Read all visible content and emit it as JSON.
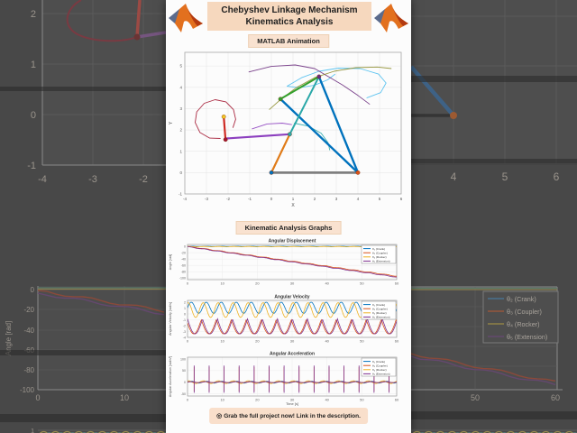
{
  "header": {
    "title_line1": "Chebyshev Linkage Mechanism",
    "title_line2": "Kinematics Analysis",
    "animation_badge": "MATLAB Animation"
  },
  "graphs_section": {
    "badge": "Kinematic Analysis Graphs"
  },
  "footer": {
    "icon": "◎",
    "cta": "Grab the full project now! Link in the description."
  },
  "colors": {
    "peach": "#F6D8BE",
    "peach_light": "#F9E2D0",
    "panel": "#FCFCFC",
    "bg_dim": "#484848",
    "matlab_blue": "#0072BD",
    "matlab_orange": "#D95319",
    "matlab_yellow": "#EDB120",
    "matlab_purple": "#7E2F8E",
    "matlab_green": "#33A02C",
    "matlab_cyan": "#4DBEEE",
    "matlab_darkred": "#A2142F"
  },
  "legend": {
    "entries": [
      {
        "label": "θ₂ (Crank)",
        "color": "#0072BD"
      },
      {
        "label": "θ₃ (Coupler)",
        "color": "#D95319"
      },
      {
        "label": "θ₄ (Rocker)",
        "color": "#EDB120"
      },
      {
        "label": "θ₅ (Extension)",
        "color": "#7E2F8E"
      }
    ]
  },
  "chart_data": [
    {
      "id": "mechanism",
      "type": "scatter",
      "title": "",
      "xlabel": "X",
      "ylabel": "Y",
      "xlim": [
        -4,
        6
      ],
      "ylim": [
        -1,
        5.64
      ],
      "xticks": [
        -4,
        -3,
        -2,
        -1,
        0,
        1,
        2,
        3,
        4,
        5,
        6
      ],
      "yticks": [
        -1,
        0,
        1,
        2,
        3,
        4,
        5
      ],
      "grid": true,
      "links": [
        {
          "name": "ground",
          "from": [
            0,
            0
          ],
          "to": [
            4,
            0
          ],
          "color": "#7F7F7F",
          "width": 2.8
        },
        {
          "name": "rocker",
          "from": [
            4,
            0
          ],
          "to": [
            2.2,
            4.5
          ],
          "color": "#0072BD",
          "width": 2.4
        },
        {
          "name": "brace",
          "from": [
            0.42,
            3.45
          ],
          "to": [
            4,
            0
          ],
          "color": "#0072BD",
          "width": 2.4
        },
        {
          "name": "coupler",
          "from": [
            0.85,
            1.8
          ],
          "to": [
            2.2,
            4.5
          ],
          "color": "#2BA8A8",
          "width": 2.0
        },
        {
          "name": "upper-link",
          "from": [
            0.42,
            3.45
          ],
          "to": [
            2.2,
            4.5
          ],
          "color": "#33A02C",
          "width": 2.0
        },
        {
          "name": "crank",
          "from": [
            0,
            0
          ],
          "to": [
            0.85,
            1.8
          ],
          "color": "#E07B18",
          "width": 2.2
        },
        {
          "name": "extension-arm",
          "from": [
            0.85,
            1.8
          ],
          "to": [
            -2.1,
            1.6
          ],
          "color": "#8C3FBF",
          "width": 2.2
        },
        {
          "name": "pen-link",
          "from": [
            -2.12,
            1.55
          ],
          "to": [
            -2.2,
            2.62
          ],
          "color": "#CE2A23",
          "width": 2.2
        }
      ],
      "joints": [
        {
          "pos": [
            0,
            0
          ],
          "color": "#0072BD"
        },
        {
          "pos": [
            4,
            0
          ],
          "color": "#D95319"
        },
        {
          "pos": [
            0.85,
            1.8
          ],
          "color": "#2BA8A8"
        },
        {
          "pos": [
            2.2,
            4.5
          ],
          "color": "#6B2D7E"
        },
        {
          "pos": [
            0.42,
            3.45
          ],
          "color": "#33A02C"
        },
        {
          "pos": [
            -2.12,
            1.55
          ],
          "color": "#A2142F"
        },
        {
          "pos": [
            -2.2,
            2.62
          ],
          "color": "#F3C623"
        }
      ],
      "trajectories": [
        {
          "name": "pen-path",
          "color": "#A2142F",
          "points": [
            [
              -2.35,
              1.6
            ],
            [
              -2.85,
              1.62
            ],
            [
              -3.3,
              1.88
            ],
            [
              -3.52,
              2.35
            ],
            [
              -3.45,
              2.85
            ],
            [
              -3.1,
              3.25
            ],
            [
              -2.6,
              3.42
            ],
            [
              -2.1,
              3.32
            ],
            [
              -1.75,
              2.95
            ],
            [
              -1.65,
              2.5
            ],
            [
              -1.78,
              2.1
            ]
          ]
        },
        {
          "name": "coupler-path-outer",
          "color": "#4DBEEE",
          "points": [
            [
              0.72,
              4.05
            ],
            [
              1.4,
              4.45
            ],
            [
              2.2,
              4.75
            ],
            [
              3.1,
              4.9
            ],
            [
              4.1,
              4.88
            ],
            [
              4.95,
              4.62
            ],
            [
              5.3,
              4.2
            ],
            [
              5.05,
              3.75
            ],
            [
              4.4,
              3.5
            ]
          ]
        },
        {
          "name": "coupler-path-inner",
          "color": "#4DBEEE",
          "points": [
            [
              0.72,
              4.05
            ],
            [
              1.3,
              3.98
            ],
            [
              2.0,
              4.1
            ],
            [
              2.6,
              4.35
            ],
            [
              2.95,
              4.62
            ]
          ]
        },
        {
          "name": "top-joint-path",
          "color": "#6B2D7E",
          "points": [
            [
              -1.05,
              4.72
            ],
            [
              0.0,
              4.98
            ],
            [
              1.1,
              5.05
            ],
            [
              2.0,
              4.88
            ],
            [
              2.55,
              4.55
            ],
            [
              3.3,
              4.1
            ],
            [
              4.0,
              3.62
            ],
            [
              4.55,
              3.2
            ]
          ]
        },
        {
          "name": "upper-joint-path",
          "color": "#8B8B2A",
          "points": [
            [
              -0.1,
              2.95
            ],
            [
              0.45,
              3.45
            ],
            [
              1.15,
              3.98
            ],
            [
              2.0,
              4.45
            ],
            [
              2.9,
              4.75
            ],
            [
              3.9,
              4.92
            ],
            [
              4.9,
              4.95
            ],
            [
              5.55,
              4.88
            ]
          ]
        },
        {
          "name": "arm-tip-path",
          "color": "#2BA8A8",
          "points": [
            [
              1.05,
              2.32
            ],
            [
              1.7,
              2.18
            ],
            [
              2.3,
              1.85
            ],
            [
              2.62,
              1.4
            ],
            [
              2.7,
              1.05
            ]
          ]
        },
        {
          "name": "arm-tip-path-2",
          "color": "#8C3FBF",
          "points": [
            [
              -0.9,
              2.05
            ],
            [
              -0.2,
              2.28
            ],
            [
              0.5,
              2.32
            ],
            [
              0.95,
              2.25
            ]
          ]
        }
      ]
    },
    {
      "id": "angular-displacement",
      "type": "line",
      "title": "Angular Displacement",
      "ylabel": "Angle [rad]",
      "xlim": [
        0,
        60
      ],
      "ylim": [
        -105,
        6
      ],
      "yticks": [
        0,
        -20,
        -40,
        -60,
        -80,
        -100
      ],
      "xticks": [
        0,
        10,
        20,
        30,
        40,
        50,
        60
      ],
      "legend": true,
      "series": [
        {
          "name": "θ₂ (Crank)",
          "color": "#0072BD",
          "kind": "sin",
          "base": 0.3,
          "amp": 0.4,
          "period": 4.3,
          "phase": 0
        },
        {
          "name": "θ₃ (Coupler)",
          "color": "#D95319",
          "kind": "linear",
          "start": 0,
          "end": -94,
          "amp": 0.9,
          "period": 4.3,
          "phase": 0
        },
        {
          "name": "θ₄ (Rocker)",
          "color": "#EDB120",
          "kind": "sin",
          "base": -0.8,
          "amp": 0.5,
          "period": 4.3,
          "phase": 1
        },
        {
          "name": "θ₅ (Extension)",
          "color": "#7E2F8E",
          "kind": "linear",
          "start": -1.2,
          "end": -97,
          "amp": 0.9,
          "period": 4.3,
          "phase": 0.5
        }
      ]
    },
    {
      "id": "angular-velocity",
      "type": "line",
      "title": "Angular Velocity",
      "ylabel": "Angular Velocity [rad/s]",
      "xlim": [
        0,
        60
      ],
      "ylim": [
        -4,
        2.3
      ],
      "yticks": [
        2,
        1,
        0,
        -1,
        -2,
        -3,
        -4
      ],
      "xticks": [
        0,
        10,
        20,
        30,
        40,
        50,
        60
      ],
      "legend": true,
      "series": [
        {
          "name": "θ₂ (Crank)",
          "color": "#0072BD",
          "kind": "sin",
          "base": 1.05,
          "amp": 0.95,
          "period": 4.3,
          "phase": 0
        },
        {
          "name": "θ₃ (Coupler)",
          "color": "#D95319",
          "kind": "scallop",
          "base": -0.95,
          "amp": 2.45,
          "period": 4.3,
          "phase": 0.25
        },
        {
          "name": "θ₄ (Rocker)",
          "color": "#EDB120",
          "kind": "sin",
          "base": 0.65,
          "amp": 1.25,
          "period": 4.3,
          "phase": 1.3
        },
        {
          "name": "θ₅ (Extension)",
          "color": "#7E2F8E",
          "kind": "scallop",
          "base": -0.85,
          "amp": 2.55,
          "period": 4.3,
          "phase": 0
        }
      ]
    },
    {
      "id": "angular-acceleration",
      "type": "line",
      "title": "Angular Acceleration",
      "ylabel": "Angular Acceleration [rad/s²]",
      "xlabel": "Time [s]",
      "xlim": [
        0,
        60
      ],
      "ylim": [
        -60,
        108
      ],
      "yticks": [
        100,
        50,
        0,
        -50
      ],
      "xticks": [
        0,
        10,
        20,
        30,
        40,
        50,
        60
      ],
      "legend": true,
      "series": [
        {
          "name": "θ₂ (Crank)",
          "color": "#0072BD",
          "kind": "sin",
          "base": 0,
          "amp": 4,
          "period": 4.3,
          "phase": 0
        },
        {
          "name": "θ₃ (Coupler)",
          "color": "#D95319",
          "kind": "spikes",
          "base": 0,
          "amp": 2,
          "period": 4.3,
          "phase": 0,
          "offset": 1.9,
          "up": 66,
          "down": -40
        },
        {
          "name": "θ₄ (Rocker)",
          "color": "#EDB120",
          "kind": "sin",
          "base": 0,
          "amp": 6,
          "period": 4.3,
          "phase": 1.2
        },
        {
          "name": "θ₅ (Extension)",
          "color": "#7E2F8E",
          "kind": "spikes",
          "base": 0,
          "amp": 2,
          "period": 4.3,
          "phase": 0.5,
          "offset": 1.9,
          "up": 72,
          "down": -46
        }
      ]
    }
  ],
  "background": {
    "left_plot": {
      "yticks": [
        [
          "2",
          15
        ],
        [
          "1",
          71
        ],
        [
          "0",
          127
        ],
        [
          "-1",
          183
        ]
      ],
      "xticks": [
        [
          "-4",
          47
        ],
        [
          "-3",
          103
        ],
        [
          "-2",
          159
        ]
      ]
    },
    "left_graph": {
      "ylabel": "Angle [rad]",
      "yticks": [
        [
          "0",
          21
        ],
        [
          "-20",
          43
        ],
        [
          "-40",
          66
        ],
        [
          "-60",
          88
        ],
        [
          "-80",
          110
        ],
        [
          "-100",
          132
        ]
      ],
      "xticks": [
        [
          "0",
          42
        ],
        [
          "10",
          138
        ]
      ],
      "corner_tick": "1"
    },
    "right_plot": {
      "xticks": [
        [
          "4",
          47
        ],
        [
          "5",
          104
        ],
        [
          "6",
          161
        ]
      ]
    },
    "right_graph": {
      "xticks": [
        [
          "50",
          71
        ],
        [
          "60",
          160
        ]
      ]
    }
  }
}
